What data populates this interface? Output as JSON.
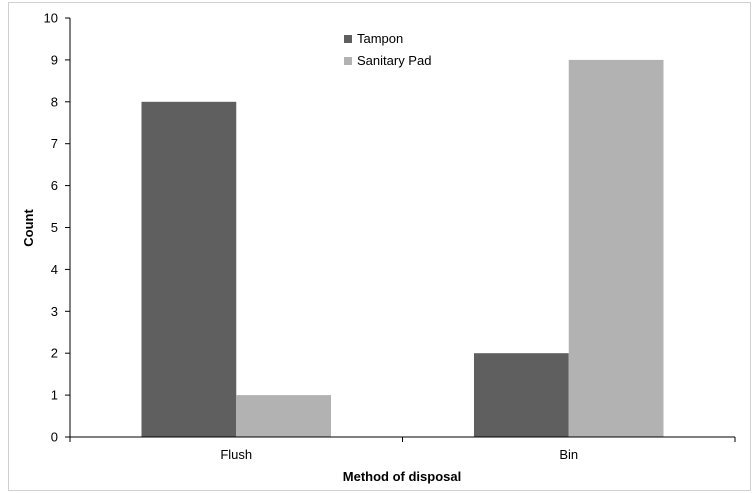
{
  "chart_data": {
    "type": "bar",
    "categories": [
      "Flush",
      "Bin"
    ],
    "series": [
      {
        "name": "Tampon",
        "values": [
          8,
          2
        ],
        "color": "#5f5f5f"
      },
      {
        "name": "Sanitary Pad",
        "values": [
          1,
          9
        ],
        "color": "#b2b2b2"
      }
    ],
    "xlabel": "Method of disposal",
    "ylabel": "Count",
    "ylim": [
      0,
      10
    ],
    "yticks": [
      "0",
      "1",
      "2",
      "3",
      "4",
      "5",
      "6",
      "7",
      "8",
      "9",
      "10"
    ],
    "grid": false,
    "legend_position": "top-center"
  }
}
